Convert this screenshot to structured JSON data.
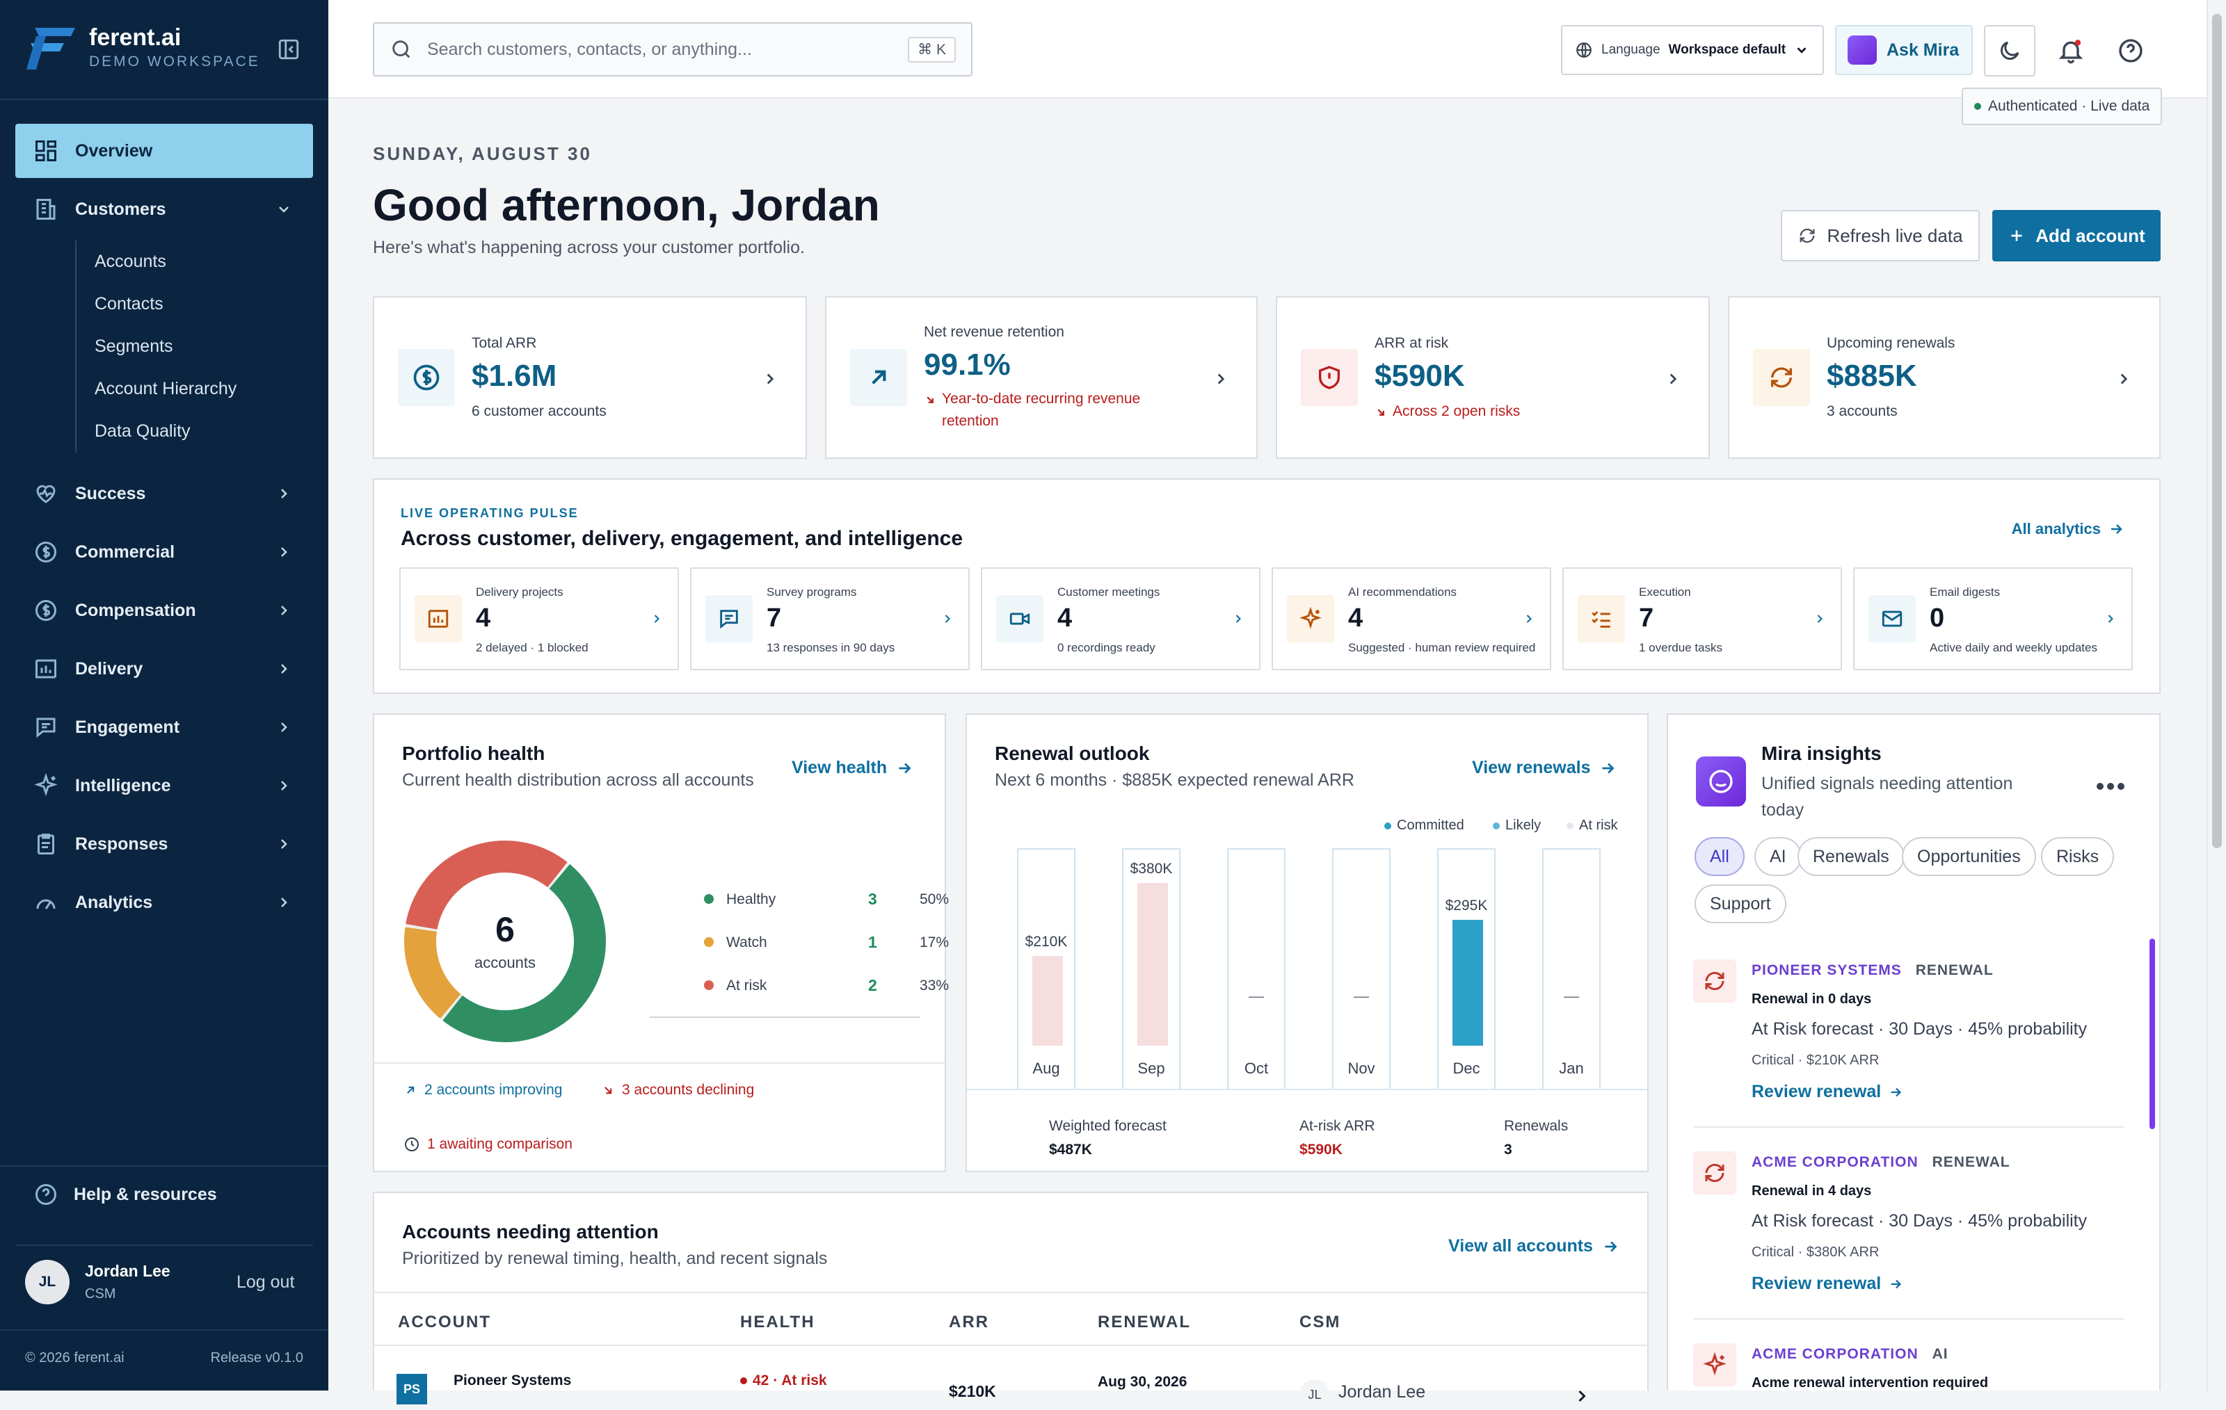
{
  "brand": {
    "name": "ferent.ai",
    "workspace": "DEMO WORKSPACE"
  },
  "sidebar": {
    "items": [
      {
        "label": "Overview",
        "icon": "grid-icon"
      },
      {
        "label": "Customers",
        "icon": "building-icon"
      },
      {
        "label": "Success",
        "icon": "heart-pulse-icon"
      },
      {
        "label": "Commercial",
        "icon": "dollar-circle-icon"
      },
      {
        "label": "Compensation",
        "icon": "dollar-circle-icon"
      },
      {
        "label": "Delivery",
        "icon": "chart-frame-icon"
      },
      {
        "label": "Engagement",
        "icon": "message-square-icon"
      },
      {
        "label": "Intelligence",
        "icon": "sparkles-icon"
      },
      {
        "label": "Responses",
        "icon": "clipboard-icon"
      },
      {
        "label": "Analytics",
        "icon": "gauge-icon"
      }
    ],
    "customers_sub": [
      "Accounts",
      "Contacts",
      "Segments",
      "Account Hierarchy",
      "Data Quality"
    ],
    "help": "Help & resources",
    "user": {
      "initials": "JL",
      "name": "Jordan Lee",
      "role": "CSM",
      "logout": "Log out"
    },
    "copyright": "© 2026 ferent.ai",
    "release": "Release v0.1.0"
  },
  "topbar": {
    "search_placeholder": "Search customers, contacts, or anything...",
    "shortcut": "⌘ K",
    "language_label": "Language",
    "language_value": "Workspace default",
    "ask_mira": "Ask Mira",
    "auth_status": "Authenticated · Live data"
  },
  "header": {
    "date": "SUNDAY, AUGUST 30",
    "greeting": "Good afternoon, Jordan",
    "subtitle": "Here's what's happening across your customer portfolio.",
    "refresh": "Refresh live data",
    "add_account": "Add account"
  },
  "kpis": [
    {
      "label": "Total ARR",
      "value": "$1.6M",
      "sub": "6 customer accounts",
      "icon": "dollar-circle-icon"
    },
    {
      "label": "Net revenue retention",
      "value": "99.1%",
      "sub": "Year-to-date recurring revenue retention",
      "icon": "arrow-up-right-icon"
    },
    {
      "label": "ARR at risk",
      "value": "$590K",
      "sub": "Across 2 open risks",
      "icon": "shield-alert-icon"
    },
    {
      "label": "Upcoming renewals",
      "value": "$885K",
      "sub": "3 accounts",
      "icon": "refresh-icon"
    }
  ],
  "pulse": {
    "eyebrow": "LIVE OPERATING PULSE",
    "title": "Across customer, delivery, engagement, and intelligence",
    "link": "All analytics",
    "cards": [
      {
        "label": "Delivery projects",
        "value": "4",
        "sub": "2 delayed · 1 blocked",
        "icon": "chart-frame-icon"
      },
      {
        "label": "Survey programs",
        "value": "7",
        "sub": "13 responses in 90 days",
        "icon": "message-square-icon"
      },
      {
        "label": "Customer meetings",
        "value": "4",
        "sub": "0 recordings ready",
        "icon": "video-icon"
      },
      {
        "label": "AI recommendations",
        "value": "4",
        "sub": "Suggested · human review required",
        "icon": "sparkles-icon"
      },
      {
        "label": "Execution",
        "value": "7",
        "sub": "1 overdue tasks",
        "icon": "checklist-icon"
      },
      {
        "label": "Email digests",
        "value": "0",
        "sub": "Active daily and weekly updates",
        "icon": "mail-icon"
      }
    ]
  },
  "health": {
    "title": "Portfolio health",
    "subtitle": "Current health distribution across all accounts",
    "link": "View health",
    "total": "6",
    "total_label": "accounts",
    "legend": [
      {
        "name": "Healthy",
        "count": "3",
        "pct": "50%",
        "color": "#2f8f63"
      },
      {
        "name": "Watch",
        "count": "1",
        "pct": "17%",
        "color": "#e3a23b"
      },
      {
        "name": "At risk",
        "count": "2",
        "pct": "33%",
        "color": "#d95f55"
      }
    ],
    "improving": "2 accounts improving",
    "declining": "3 accounts declining",
    "awaiting": "1 awaiting comparison"
  },
  "renewal": {
    "title": "Renewal outlook",
    "subtitle": "Next 6 months · $885K expected renewal ARR",
    "link": "View renewals",
    "legend": [
      {
        "name": "Committed",
        "color": "#2ba0c8"
      },
      {
        "name": "Likely",
        "color": "#5bb7d9"
      },
      {
        "name": "At risk",
        "color": "#e5e7eb"
      }
    ],
    "summary": [
      {
        "label": "Weighted forecast",
        "value": "$487K"
      },
      {
        "label": "At-risk ARR",
        "value": "$590K"
      },
      {
        "label": "Renewals",
        "value": "3"
      }
    ]
  },
  "chart_data": {
    "type": "bar",
    "title": "Renewal outlook",
    "categories": [
      "Aug",
      "Sep",
      "Oct",
      "Nov",
      "Dec",
      "Jan"
    ],
    "values": [
      210,
      380,
      0,
      0,
      295,
      0
    ],
    "value_labels": [
      "$210K",
      "$380K",
      "—",
      "—",
      "$295K",
      "—"
    ],
    "status": [
      "At risk",
      "At risk",
      "",
      "",
      "Committed",
      ""
    ],
    "ylim": [
      0,
      400
    ],
    "legend": "top-right"
  },
  "insights": {
    "title": "Mira insights",
    "subtitle": "Unified signals needing attention today",
    "chips": [
      "All",
      "AI",
      "Renewals",
      "Opportunities",
      "Risks",
      "Support"
    ],
    "items": [
      {
        "company": "PIONEER SYSTEMS",
        "type": "RENEWAL",
        "headline": "Renewal in 0 days",
        "body": "At Risk forecast · 30 Days · 45% probability",
        "meta": "Critical · $210K ARR",
        "action": "Review renewal"
      },
      {
        "company": "ACME CORPORATION",
        "type": "RENEWAL",
        "headline": "Renewal in 4 days",
        "body": "At Risk forecast · 30 Days · 45% probability",
        "meta": "Critical · $380K ARR",
        "action": "Review renewal"
      },
      {
        "company": "ACME CORPORATION",
        "type": "AI",
        "headline": "Acme renewal intervention required"
      }
    ]
  },
  "attention": {
    "title": "Accounts needing attention",
    "subtitle": "Prioritized by renewal timing, health, and recent signals",
    "link": "View all accounts",
    "columns": [
      "ACCOUNT",
      "HEALTH",
      "ARR",
      "RENEWAL",
      "CSM"
    ],
    "rows": [
      {
        "initials": "PS",
        "account": "Pioneer Systems",
        "health": "42 · At risk",
        "arr": "$210K",
        "renewal": "Aug 30, 2026",
        "csm_initials": "JL",
        "csm": "Jordan Lee"
      }
    ]
  }
}
